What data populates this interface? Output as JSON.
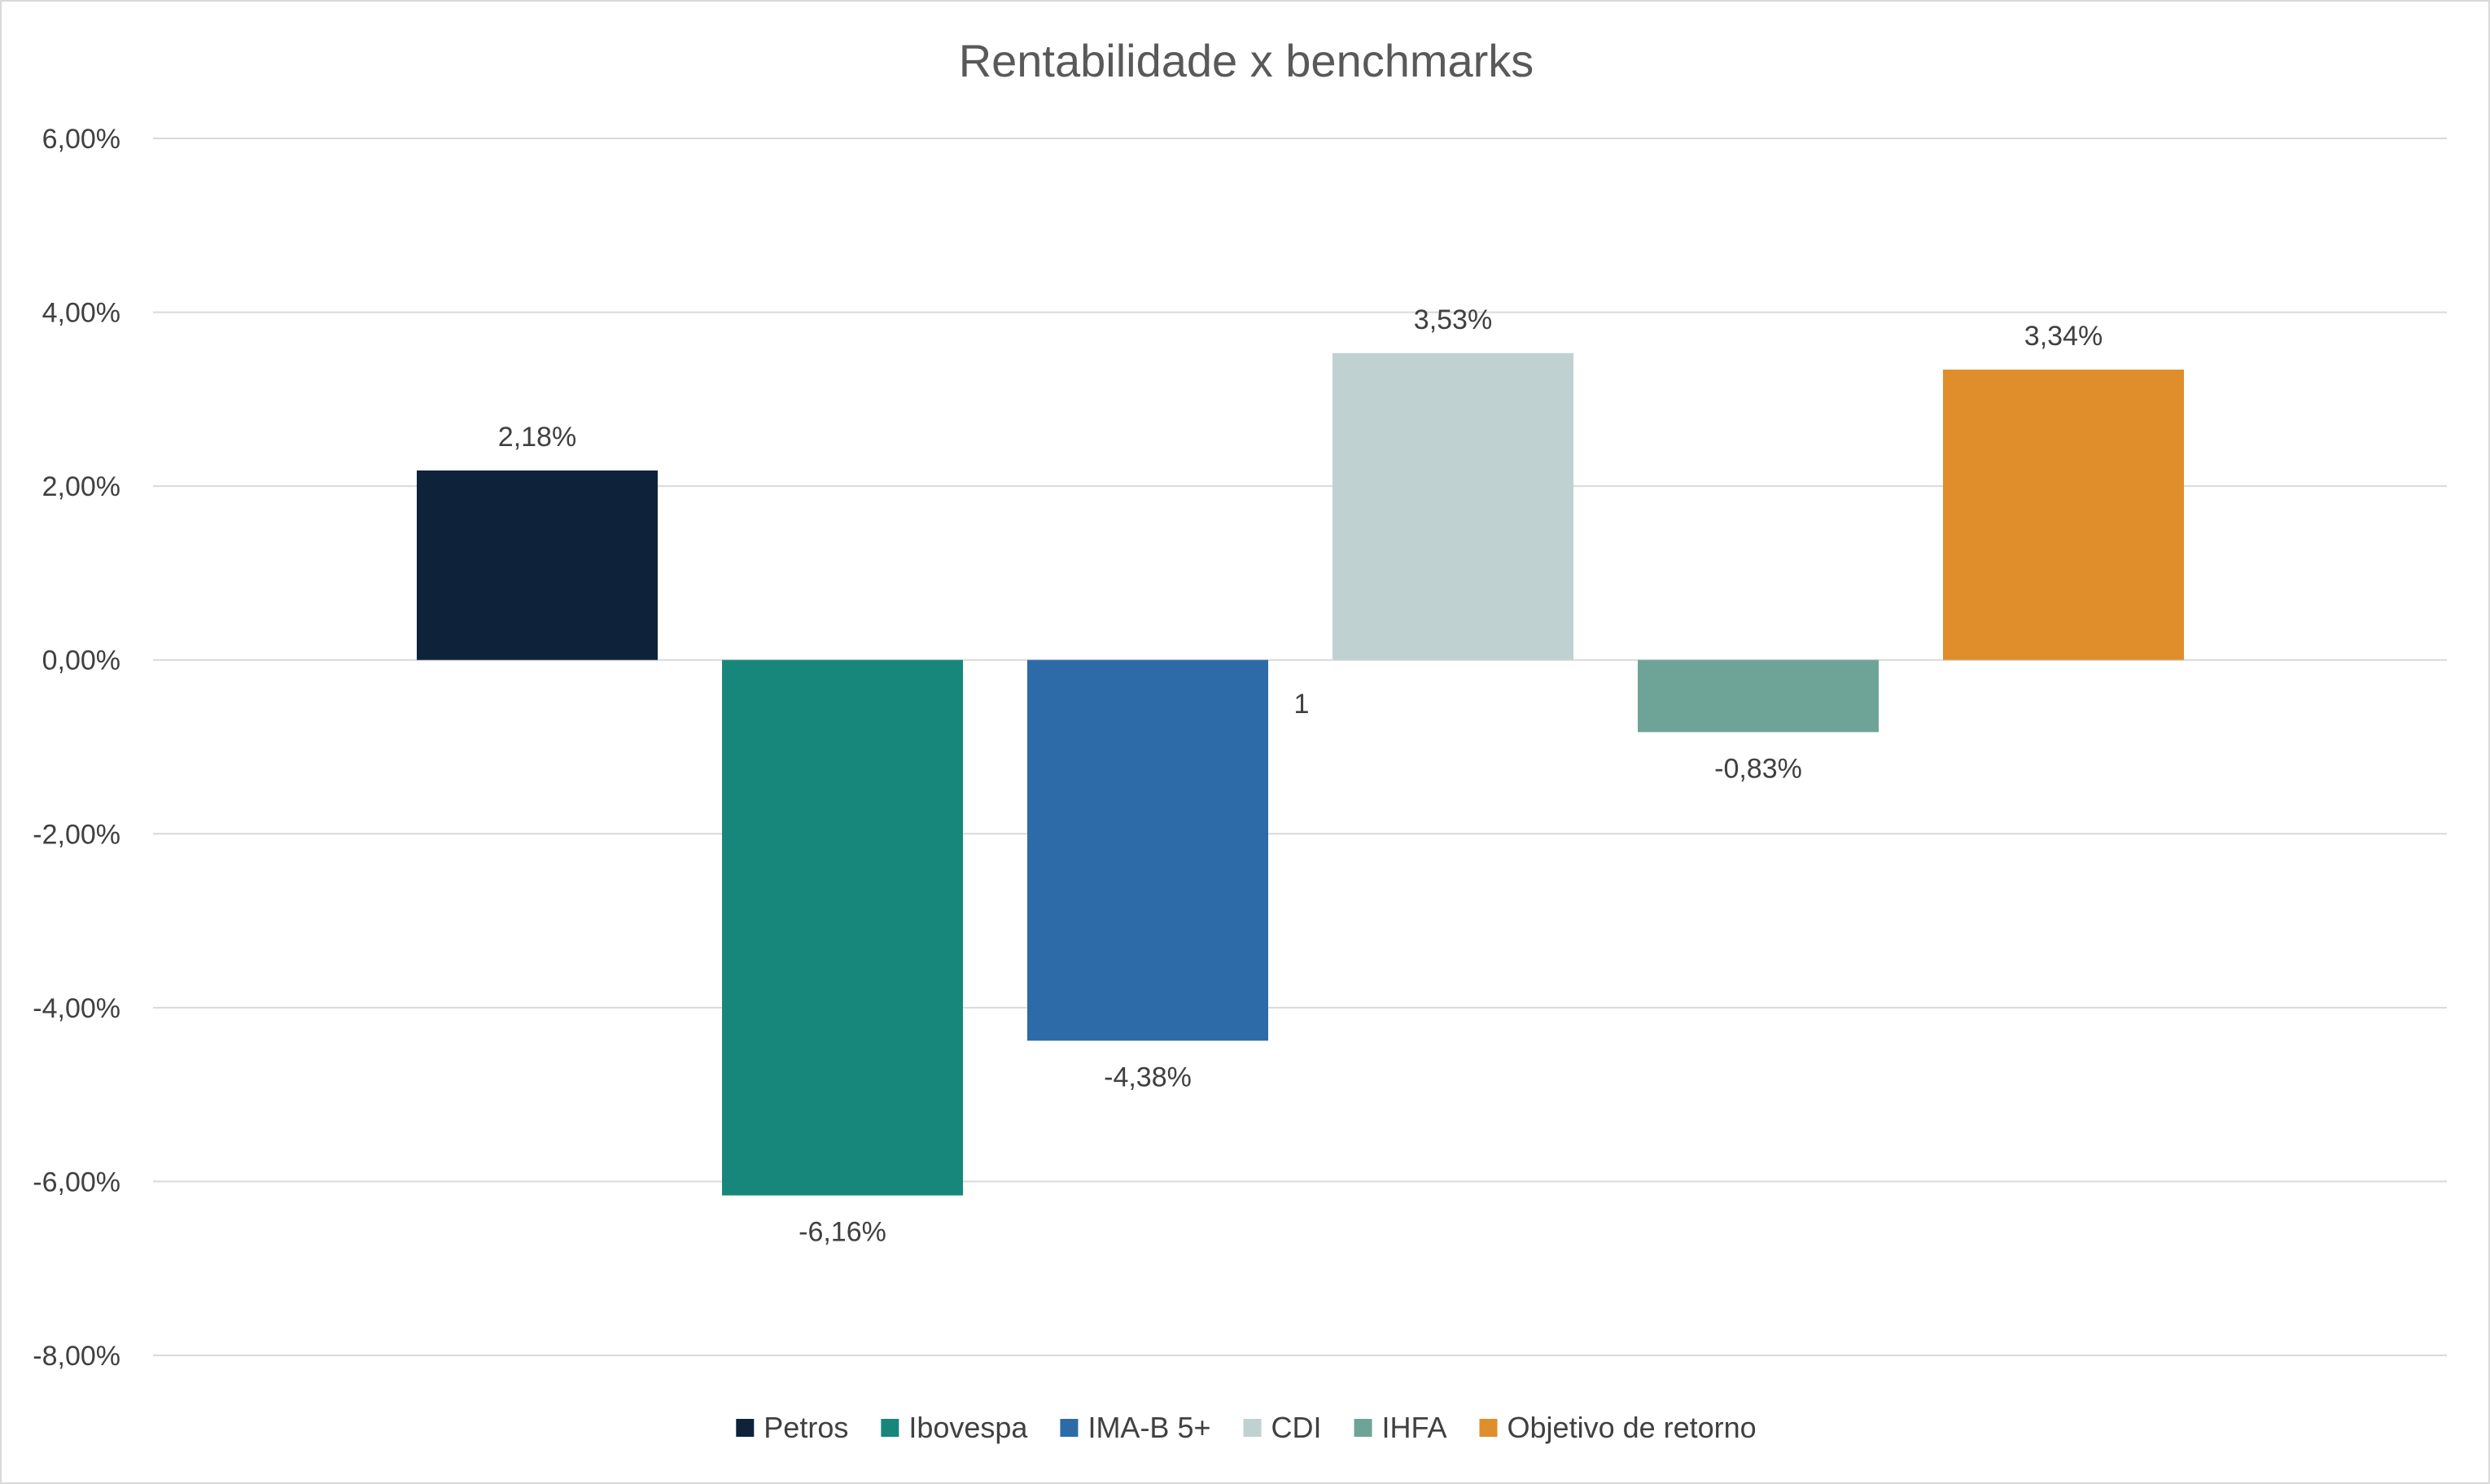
{
  "chart_data": {
    "type": "bar",
    "title": "Rentabilidade x benchmarks",
    "xlabel": "",
    "ylabel": "",
    "categories": [
      "1"
    ],
    "ylim": [
      -8,
      6
    ],
    "yticks": [
      6,
      4,
      2,
      0,
      -2,
      -4,
      -6,
      -8
    ],
    "ytick_labels": [
      "6,00%",
      "4,00%",
      "2,00%",
      "0,00%",
      "-2,00%",
      "-4,00%",
      "-6,00%",
      "-8,00%"
    ],
    "grid": true,
    "legend_position": "bottom",
    "series": [
      {
        "name": "Petros",
        "value": 2.18,
        "label": "2,18%",
        "color": "#0e233a"
      },
      {
        "name": "Ibovespa",
        "value": -6.16,
        "label": "-6,16%",
        "color": "#17877b"
      },
      {
        "name": "IMA-B 5+",
        "value": -4.38,
        "label": "-4,38%",
        "color": "#2c6ba8"
      },
      {
        "name": "CDI",
        "value": 3.53,
        "label": "3,53%",
        "color": "#bfd2d1"
      },
      {
        "name": "IHFA",
        "value": -0.83,
        "label": "-0,83%",
        "color": "#6ea498"
      },
      {
        "name": "Objetivo de retorno",
        "value": 3.34,
        "label": "3,34%",
        "color": "#df8e2b"
      }
    ]
  }
}
